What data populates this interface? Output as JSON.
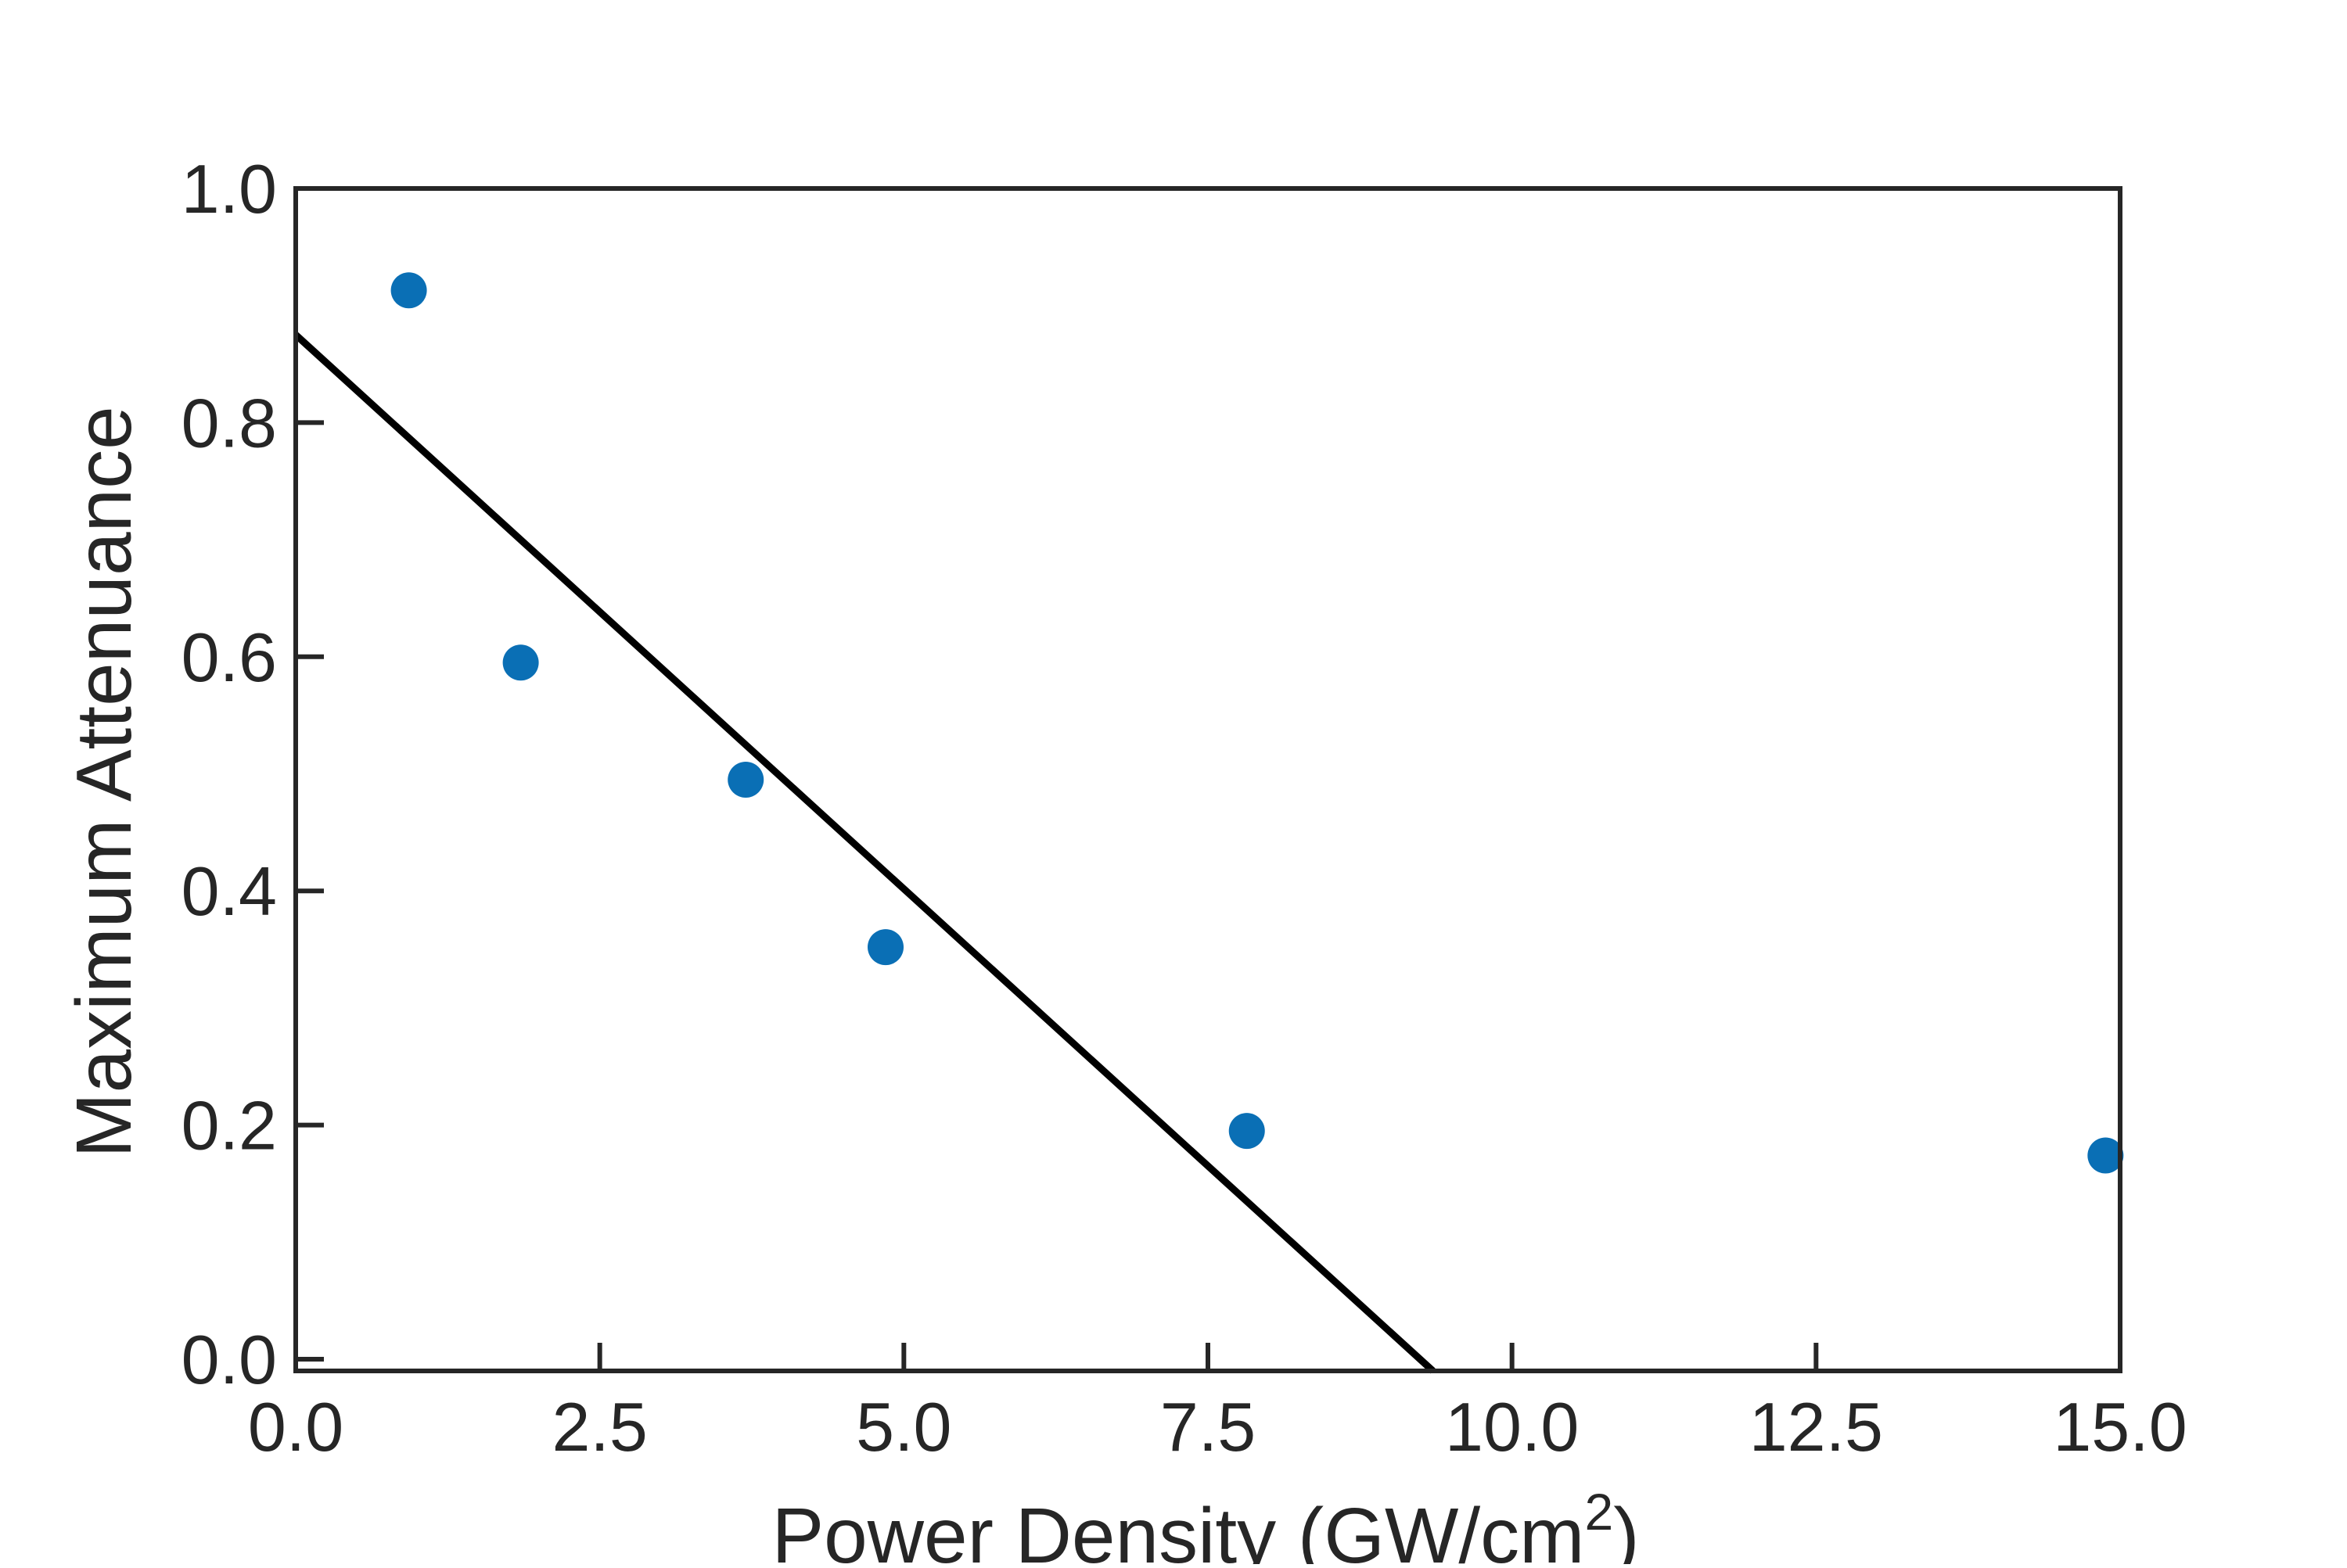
{
  "chart_data": {
    "type": "scatter",
    "xlabel": "Power Density (GW/cm",
    "xlabel_superscript": "2",
    "xlabel_suffix": ")",
    "ylabel": "Maximum Attenuance",
    "xlim": [
      0.0,
      15.0
    ],
    "ylim": [
      -0.01,
      1.0
    ],
    "x_ticks": [
      "0.0",
      "2.5",
      "5.0",
      "7.5",
      "10.0",
      "12.5",
      "15.0"
    ],
    "x_tick_values": [
      0.0,
      2.5,
      5.0,
      7.5,
      10.0,
      12.5,
      15.0
    ],
    "y_ticks": [
      "0.0",
      "0.2",
      "0.4",
      "0.6",
      "0.8",
      "1.0"
    ],
    "y_tick_values": [
      0.0,
      0.2,
      0.4,
      0.6,
      0.8,
      1.0
    ],
    "grid": false,
    "legend": "none",
    "series": [
      {
        "type": "scatter",
        "color": "#0a6fb5",
        "points": [
          {
            "x": 0.93,
            "y": 0.913
          },
          {
            "x": 1.85,
            "y": 0.595
          },
          {
            "x": 3.7,
            "y": 0.495
          },
          {
            "x": 4.85,
            "y": 0.352
          },
          {
            "x": 7.82,
            "y": 0.195
          },
          {
            "x": 14.88,
            "y": 0.174
          }
        ]
      },
      {
        "type": "line",
        "color": "#000000",
        "points": [
          {
            "x": 0.0,
            "y": 0.875
          },
          {
            "x": 9.35,
            "y": -0.01
          }
        ]
      }
    ]
  }
}
